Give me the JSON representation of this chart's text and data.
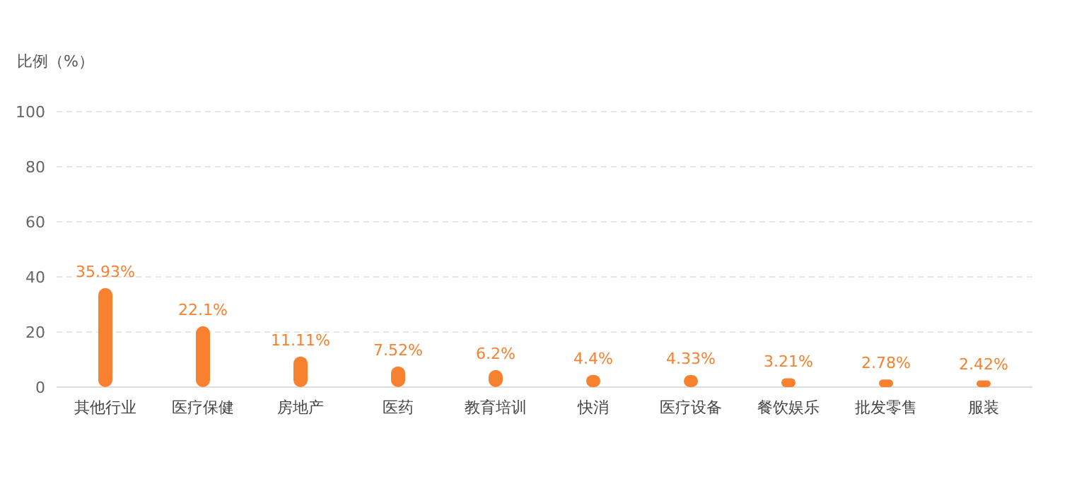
{
  "chart_data": {
    "type": "bar",
    "ylabel": "比例（%）",
    "categories": [
      "其他行业",
      "医疗保健",
      "房地产",
      "医药",
      "教育培训",
      "快消",
      "医疗设备",
      "餐饮娱乐",
      "批发零售",
      "服装"
    ],
    "values": [
      35.93,
      22.1,
      11.11,
      7.52,
      6.2,
      4.4,
      4.33,
      3.21,
      2.78,
      2.42
    ],
    "value_labels": [
      "35.93%",
      "22.1%",
      "11.11%",
      "7.52%",
      "6.2%",
      "4.4%",
      "4.33%",
      "3.21%",
      "2.78%",
      "2.42%"
    ],
    "color": "#f7812f",
    "ylim": [
      0,
      100
    ],
    "yticks": [
      0,
      20,
      40,
      60,
      80,
      100
    ],
    "grid": "y"
  }
}
